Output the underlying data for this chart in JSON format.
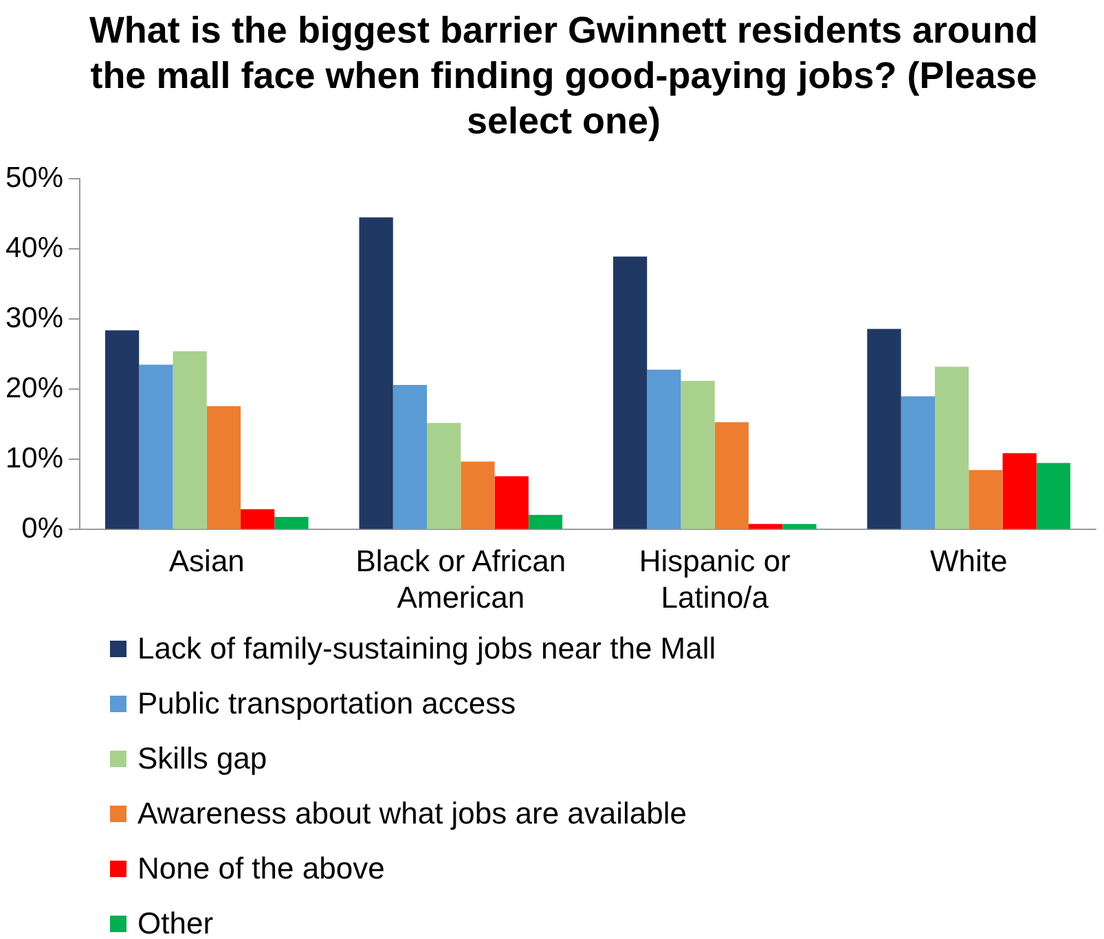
{
  "chart_data": {
    "type": "bar",
    "title": "What is the biggest barrier Gwinnett residents around the mall face when finding good-paying jobs? (Please select one)",
    "categories": [
      "Asian",
      "Black or African American",
      "Hispanic or Latino/a",
      "White"
    ],
    "series": [
      {
        "name": "Lack of family-sustaining jobs near the Mall",
        "color": "#203864",
        "values": [
          28.4,
          44.5,
          38.9,
          28.6
        ]
      },
      {
        "name": "Public transportation access",
        "color": "#5b9bd5",
        "values": [
          23.5,
          20.6,
          22.8,
          19.0
        ]
      },
      {
        "name": "Skills gap",
        "color": "#a9d18e",
        "values": [
          25.4,
          15.2,
          21.2,
          23.2
        ]
      },
      {
        "name": "Awareness about what jobs are available",
        "color": "#ed7d31",
        "values": [
          17.6,
          9.7,
          15.3,
          8.5
        ]
      },
      {
        "name": "None of the above",
        "color": "#ff0000",
        "values": [
          2.9,
          7.6,
          0.8,
          10.9
        ]
      },
      {
        "name": "Other",
        "color": "#00b050",
        "values": [
          1.8,
          2.1,
          0.8,
          9.5
        ]
      }
    ],
    "ylim": [
      0,
      50
    ],
    "yticks": [
      {
        "value": 0,
        "label": "0%"
      },
      {
        "value": 10,
        "label": "10%"
      },
      {
        "value": 20,
        "label": "20%"
      },
      {
        "value": 30,
        "label": "30%"
      },
      {
        "value": 40,
        "label": "40%"
      },
      {
        "value": 50,
        "label": "50%"
      }
    ],
    "grid": false,
    "legend": "bottom"
  }
}
